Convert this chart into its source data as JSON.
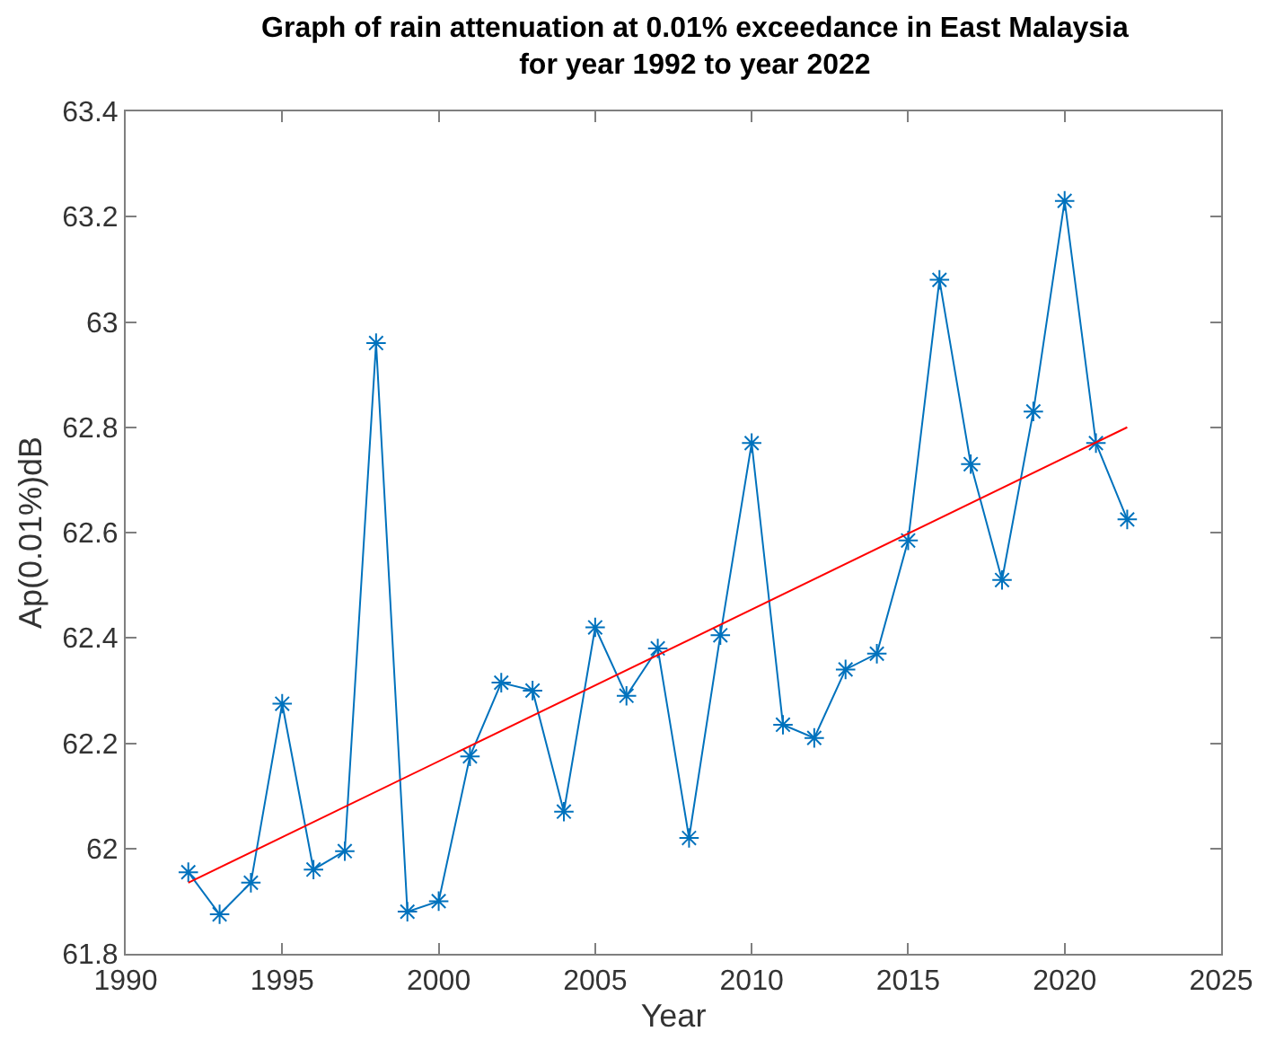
{
  "chart_data": {
    "type": "line",
    "title": "Graph of rain attenuation at 0.01% exceedance in East Malaysia\nfor year 1992 to year 2022",
    "xlabel": "Year",
    "ylabel": "Ap(0.01%)dB",
    "x": [
      1992,
      1993,
      1994,
      1995,
      1996,
      1997,
      1998,
      1999,
      2000,
      2001,
      2002,
      2003,
      2004,
      2005,
      2006,
      2007,
      2008,
      2009,
      2010,
      2011,
      2012,
      2013,
      2014,
      2015,
      2016,
      2017,
      2018,
      2019,
      2020,
      2021,
      2022
    ],
    "series": [
      {
        "color": "#0072bd",
        "marker": "cross",
        "values": [
          61.955,
          61.875,
          61.935,
          62.275,
          61.96,
          61.995,
          62.96,
          61.88,
          61.9,
          62.175,
          62.315,
          62.3,
          62.07,
          62.42,
          62.29,
          62.38,
          62.02,
          62.405,
          62.77,
          62.235,
          62.21,
          62.34,
          62.37,
          62.585,
          63.08,
          62.73,
          62.51,
          62.83,
          63.23,
          62.77,
          62.625
        ]
      },
      {
        "color": "#ff0000",
        "marker": "none",
        "x": [
          1992,
          2022
        ],
        "values": [
          61.935,
          62.8
        ]
      }
    ],
    "xlim": [
      1990,
      2025
    ],
    "xticks": [
      1990,
      1995,
      2000,
      2005,
      2010,
      2015,
      2020,
      2025
    ],
    "ylim": [
      61.8,
      63.4
    ],
    "yticks": [
      61.8,
      62,
      62.2,
      62.4,
      62.6,
      62.8,
      63,
      63.2,
      63.4
    ],
    "legend": false,
    "line_style": "solid"
  }
}
